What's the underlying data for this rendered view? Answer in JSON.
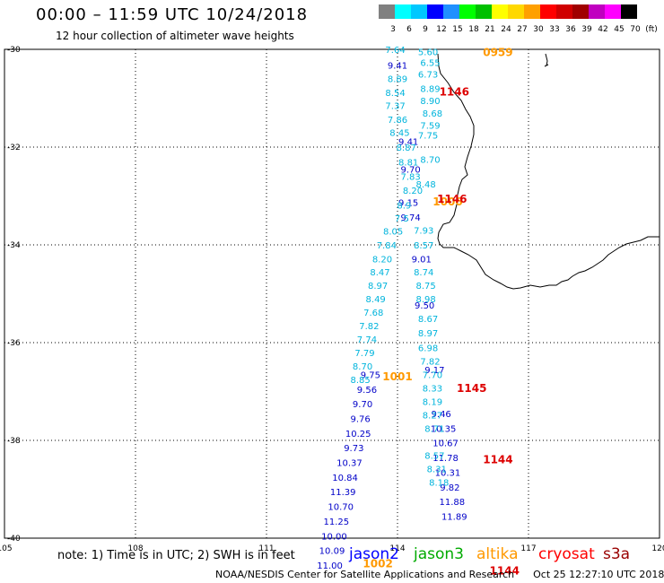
{
  "header": {
    "title": "00:00 – 11:59 UTC 10/24/2018",
    "subtitle": "12 hour collection of altimeter wave heights"
  },
  "colorbar": {
    "labels": [
      "3",
      "6",
      "9",
      "12",
      "15",
      "18",
      "21",
      "24",
      "27",
      "30",
      "33",
      "36",
      "39",
      "42",
      "45",
      "70",
      "(ft)"
    ],
    "colors": [
      "#808080",
      "#00ffff",
      "#00c8ff",
      "#0000ff",
      "#2090ff",
      "#00ff00",
      "#00c000",
      "#ffff00",
      "#ffd800",
      "#ffa000",
      "#ff0000",
      "#d00000",
      "#a00000",
      "#c000c0",
      "#ff00ff",
      "#000000"
    ]
  },
  "axes": {
    "lat_labels": [
      "-30",
      "-32",
      "-34",
      "-36",
      "-38",
      "-40"
    ],
    "lon_labels": [
      "105",
      "108",
      "111",
      "114",
      "117",
      "120"
    ]
  },
  "chart_data": {
    "type": "map",
    "x_range": [
      105,
      120
    ],
    "y_range": [
      -40,
      -30
    ],
    "units": "ft",
    "passes": [
      {
        "satellite": "jason2",
        "points": [
          {
            "lon": 114.0,
            "lat": -30.32,
            "v": "9.41",
            "c": "#0000c8"
          },
          {
            "lon": 114.25,
            "lat": -31.88,
            "v": "9.41",
            "c": "#0000c8"
          },
          {
            "lon": 114.3,
            "lat": -32.45,
            "v": "9.70",
            "c": "#0000c8"
          },
          {
            "lon": 114.25,
            "lat": -33.13,
            "v": "9.15",
            "c": "#0000c8"
          },
          {
            "lon": 114.3,
            "lat": -33.43,
            "v": "9.74",
            "c": "#0000c8"
          },
          {
            "lon": 114.55,
            "lat": -34.28,
            "v": "9.01",
            "c": "#0000c8"
          },
          {
            "lon": 114.62,
            "lat": -35.23,
            "v": "9.50",
            "c": "#0000c8"
          },
          {
            "lon": 113.38,
            "lat": -36.65,
            "v": "9.75",
            "c": "#0000c8"
          },
          {
            "lon": 113.3,
            "lat": -36.95,
            "v": "9.56",
            "c": "#0000c8"
          },
          {
            "lon": 113.2,
            "lat": -37.25,
            "v": "9.70",
            "c": "#0000c8"
          },
          {
            "lon": 113.15,
            "lat": -37.55,
            "v": "9.76",
            "c": "#0000c8"
          },
          {
            "lon": 113.1,
            "lat": -37.85,
            "v": "10.25",
            "c": "#0000c8"
          },
          {
            "lon": 113.0,
            "lat": -38.15,
            "v": "9.73",
            "c": "#0000c8"
          },
          {
            "lon": 112.9,
            "lat": -38.45,
            "v": "10.37",
            "c": "#0000c8"
          },
          {
            "lon": 112.8,
            "lat": -38.75,
            "v": "10.84",
            "c": "#0000c8"
          },
          {
            "lon": 112.75,
            "lat": -39.05,
            "v": "11.39",
            "c": "#0000c8"
          },
          {
            "lon": 112.7,
            "lat": -39.35,
            "v": "10.70",
            "c": "#0000c8"
          },
          {
            "lon": 112.6,
            "lat": -39.65,
            "v": "11.25",
            "c": "#0000c8"
          },
          {
            "lon": 112.55,
            "lat": -39.95,
            "v": "10.00",
            "c": "#0000c8"
          },
          {
            "lon": 112.5,
            "lat": -40.25,
            "v": "10.09",
            "c": "#0000c8"
          },
          {
            "lon": 112.45,
            "lat": -40.55,
            "v": "11.00",
            "c": "#0000c8"
          },
          {
            "lon": 114.85,
            "lat": -36.55,
            "v": "9.17",
            "c": "#0000c8"
          },
          {
            "lon": 115.0,
            "lat": -37.45,
            "v": "9.46",
            "c": "#0000c8"
          },
          {
            "lon": 115.05,
            "lat": -37.75,
            "v": "10.35",
            "c": "#0000c8"
          },
          {
            "lon": 115.1,
            "lat": -38.05,
            "v": "10.67",
            "c": "#0000c8"
          },
          {
            "lon": 115.1,
            "lat": -38.35,
            "v": "11.78",
            "c": "#0000c8"
          },
          {
            "lon": 115.15,
            "lat": -38.65,
            "v": "10.31",
            "c": "#0000c8"
          },
          {
            "lon": 115.2,
            "lat": -38.95,
            "v": "9.82",
            "c": "#0000c8"
          },
          {
            "lon": 115.25,
            "lat": -39.25,
            "v": "11.88",
            "c": "#0000c8"
          },
          {
            "lon": 115.3,
            "lat": -39.55,
            "v": "11.89",
            "c": "#0000c8"
          }
        ]
      },
      {
        "satellite": "jason3",
        "points": [
          {
            "lon": 113.95,
            "lat": -30.0,
            "v": "7.64",
            "c": "#00b4dc"
          },
          {
            "lon": 114.0,
            "lat": -30.6,
            "v": "8.89",
            "c": "#00b4dc"
          },
          {
            "lon": 113.95,
            "lat": -30.88,
            "v": "8.54",
            "c": "#00b4dc"
          },
          {
            "lon": 113.95,
            "lat": -31.15,
            "v": "7.37",
            "c": "#00b4dc"
          },
          {
            "lon": 114.0,
            "lat": -31.43,
            "v": "7.86",
            "c": "#00b4dc"
          },
          {
            "lon": 114.05,
            "lat": -31.7,
            "v": "8.45",
            "c": "#00b4dc"
          },
          {
            "lon": 114.2,
            "lat": -32.0,
            "v": "8.87",
            "c": "#00b4dc"
          },
          {
            "lon": 114.25,
            "lat": -32.3,
            "v": "8.81",
            "c": "#00b4dc"
          },
          {
            "lon": 114.3,
            "lat": -32.6,
            "v": "7.83",
            "c": "#00b4dc"
          },
          {
            "lon": 114.35,
            "lat": -32.88,
            "v": "8.20",
            "c": "#00b4dc"
          },
          {
            "lon": 114.15,
            "lat": -33.18,
            "v": "8.9",
            "c": "#00b4dc"
          },
          {
            "lon": 114.1,
            "lat": -33.45,
            "v": "7.5",
            "c": "#00b4dc"
          },
          {
            "lon": 113.9,
            "lat": -33.72,
            "v": "8.05",
            "c": "#00b4dc"
          },
          {
            "lon": 113.75,
            "lat": -34.0,
            "v": "7.84",
            "c": "#00b4dc"
          },
          {
            "lon": 113.65,
            "lat": -34.28,
            "v": "8.20",
            "c": "#00b4dc"
          },
          {
            "lon": 113.6,
            "lat": -34.55,
            "v": "8.47",
            "c": "#00b4dc"
          },
          {
            "lon": 113.55,
            "lat": -34.83,
            "v": "8.97",
            "c": "#00b4dc"
          },
          {
            "lon": 113.5,
            "lat": -35.1,
            "v": "8.49",
            "c": "#00b4dc"
          },
          {
            "lon": 113.45,
            "lat": -35.38,
            "v": "7.68",
            "c": "#00b4dc"
          },
          {
            "lon": 113.35,
            "lat": -35.65,
            "v": "7.82",
            "c": "#00b4dc"
          },
          {
            "lon": 113.3,
            "lat": -35.93,
            "v": "7.74",
            "c": "#00b4dc"
          },
          {
            "lon": 113.25,
            "lat": -36.2,
            "v": "7.79",
            "c": "#00b4dc"
          },
          {
            "lon": 113.2,
            "lat": -36.48,
            "v": "8.70",
            "c": "#00b4dc"
          },
          {
            "lon": 113.15,
            "lat": -36.75,
            "v": "8.85",
            "c": "#00b4dc"
          },
          {
            "lon": 114.7,
            "lat": -30.05,
            "v": "5.60",
            "c": "#00b4dc"
          },
          {
            "lon": 114.75,
            "lat": -30.27,
            "v": "6.55",
            "c": "#00b4dc"
          },
          {
            "lon": 114.7,
            "lat": -30.5,
            "v": "6.73",
            "c": "#00b4dc"
          },
          {
            "lon": 114.75,
            "lat": -30.8,
            "v": "8.89",
            "c": "#00b4dc"
          },
          {
            "lon": 114.75,
            "lat": -31.05,
            "v": "8.90",
            "c": "#00b4dc"
          },
          {
            "lon": 114.8,
            "lat": -31.3,
            "v": "8.68",
            "c": "#00b4dc"
          },
          {
            "lon": 114.75,
            "lat": -31.55,
            "v": "7.59",
            "c": "#00b4dc"
          },
          {
            "lon": 114.7,
            "lat": -31.75,
            "v": "7.75",
            "c": "#00b4dc"
          },
          {
            "lon": 114.75,
            "lat": -32.25,
            "v": "8.70",
            "c": "#00b4dc"
          },
          {
            "lon": 114.65,
            "lat": -32.75,
            "v": "8.48",
            "c": "#00b4dc"
          },
          {
            "lon": 114.6,
            "lat": -33.7,
            "v": "7.93",
            "c": "#00b4dc"
          },
          {
            "lon": 114.6,
            "lat": -34.0,
            "v": "8.57",
            "c": "#00b4dc"
          },
          {
            "lon": 114.6,
            "lat": -34.55,
            "v": "8.74",
            "c": "#00b4dc"
          },
          {
            "lon": 114.65,
            "lat": -34.83,
            "v": "8.75",
            "c": "#00b4dc"
          },
          {
            "lon": 114.65,
            "lat": -35.1,
            "v": "8.98",
            "c": "#00b4dc"
          },
          {
            "lon": 114.7,
            "lat": -35.5,
            "v": "8.67",
            "c": "#00b4dc"
          },
          {
            "lon": 114.7,
            "lat": -35.8,
            "v": "8.97",
            "c": "#00b4dc"
          },
          {
            "lon": 114.7,
            "lat": -36.1,
            "v": "6.98",
            "c": "#00b4dc"
          },
          {
            "lon": 114.75,
            "lat": -36.38,
            "v": "7.82",
            "c": "#00b4dc"
          },
          {
            "lon": 114.8,
            "lat": -36.65,
            "v": "7.70",
            "c": "#00b4dc"
          },
          {
            "lon": 114.8,
            "lat": -36.93,
            "v": "8.33",
            "c": "#00b4dc"
          },
          {
            "lon": 114.8,
            "lat": -37.2,
            "v": "8.19",
            "c": "#00b4dc"
          },
          {
            "lon": 114.8,
            "lat": -37.48,
            "v": "8.27",
            "c": "#00b4dc"
          },
          {
            "lon": 114.85,
            "lat": -37.75,
            "v": "8.71",
            "c": "#00b4dc"
          },
          {
            "lon": 114.85,
            "lat": -38.3,
            "v": "8.57",
            "c": "#00b4dc"
          },
          {
            "lon": 114.9,
            "lat": -38.58,
            "v": "8.31",
            "c": "#00b4dc"
          },
          {
            "lon": 114.95,
            "lat": -38.85,
            "v": "8.18",
            "c": "#00b4dc"
          }
        ]
      }
    ],
    "time_labels": [
      {
        "lon": 116.3,
        "lat": -30.05,
        "text": "0959",
        "c": "#ff9900"
      },
      {
        "lon": 115.3,
        "lat": -30.85,
        "text": "1146",
        "c": "#dd0000"
      },
      {
        "lon": 115.15,
        "lat": -33.1,
        "text": "1006",
        "c": "#ff9900"
      },
      {
        "lon": 115.25,
        "lat": -33.05,
        "text": "1146",
        "c": "#dd0000"
      },
      {
        "lon": 114.0,
        "lat": -36.68,
        "text": "1001",
        "c": "#ff9900"
      },
      {
        "lon": 115.7,
        "lat": -36.92,
        "text": "1145",
        "c": "#dd0000"
      },
      {
        "lon": 116.3,
        "lat": -38.38,
        "text": "1144",
        "c": "#dd0000"
      },
      {
        "lon": 113.55,
        "lat": -40.5,
        "text": "1002",
        "c": "#ff9900"
      },
      {
        "lon": 116.45,
        "lat": -40.65,
        "text": "1144",
        "c": "#dd0000"
      }
    ]
  },
  "footer": {
    "note": "note: 1) Time is in UTC; 2) SWH is in feet",
    "credit": "NOAA/NESDIS Center for Satellite Applications and Research",
    "timestamp": "Oct 25 12:27:10 UTC 2018"
  },
  "satellite_legend": [
    {
      "name": "jason2",
      "color": "#0000ff"
    },
    {
      "name": "jason3",
      "color": "#00aa00"
    },
    {
      "name": "altika",
      "color": "#ff9900"
    },
    {
      "name": "cryosat",
      "color": "#ff0000"
    },
    {
      "name": "s3a",
      "color": "#990000"
    }
  ]
}
